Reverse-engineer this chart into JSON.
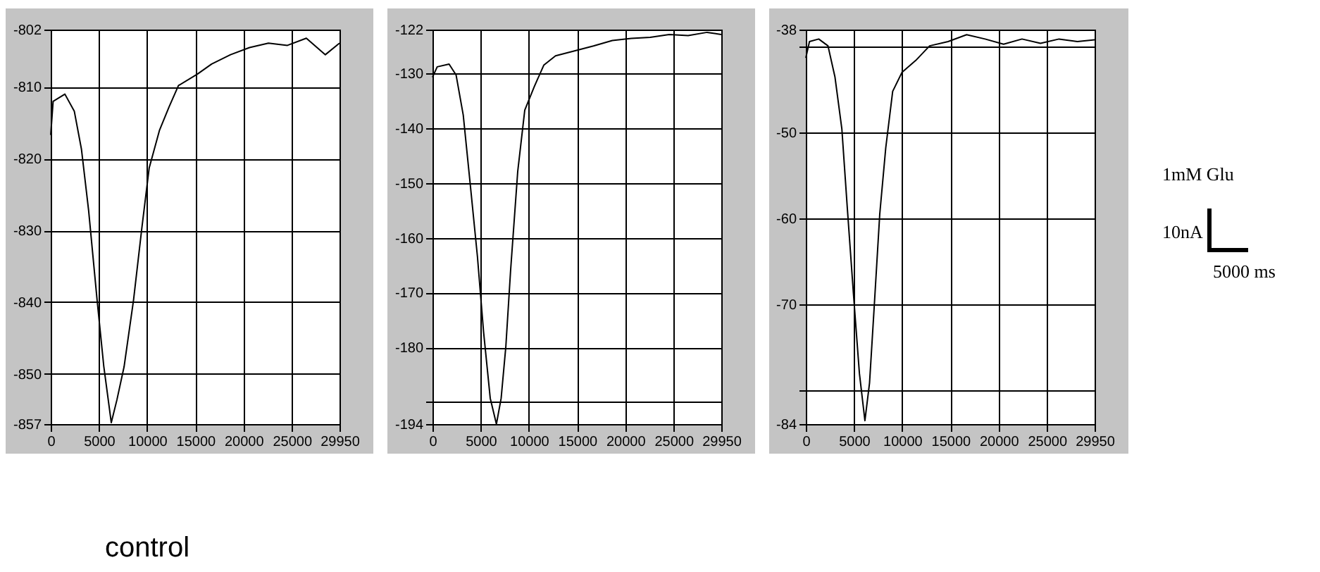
{
  "chart_data": [
    {
      "type": "line",
      "annotations": [
        "control"
      ],
      "grid": true,
      "xlim": [
        0,
        29950
      ],
      "ylim": [
        -857,
        -802
      ],
      "xticks": [
        0,
        5000,
        10000,
        15000,
        20000,
        25000,
        29950
      ],
      "yticks": [
        -857,
        -850,
        -840,
        -830,
        -820,
        -810,
        -802
      ],
      "x": [
        0,
        250,
        1470,
        2450,
        3190,
        3930,
        4810,
        5500,
        6280,
        6870,
        7610,
        8590,
        9430,
        10210,
        11290,
        12270,
        13250,
        15220,
        16690,
        18650,
        20620,
        22580,
        24550,
        26510,
        28480,
        29950
      ],
      "series": [
        {
          "color": "#000000",
          "values": [
            -816.7,
            -812,
            -811,
            -813.4,
            -818.7,
            -827.2,
            -839.7,
            -848.9,
            -856.8,
            -853.6,
            -849,
            -839.7,
            -829.9,
            -821.3,
            -816,
            -812.8,
            -809.8,
            -808.2,
            -806.8,
            -805.5,
            -804.5,
            -803.9,
            -804.2,
            -803.2,
            -805.5,
            -803.9
          ]
        }
      ]
    },
    {
      "type": "line",
      "grid": true,
      "xlim": [
        0,
        29950
      ],
      "ylim": [
        -194,
        -122
      ],
      "xticks": [
        0,
        5000,
        10000,
        15000,
        20000,
        25000,
        29950
      ],
      "yticks": [
        -194,
        {
          "value": -190,
          "label": null
        },
        -180,
        -170,
        -160,
        -150,
        -140,
        -130,
        -122
      ],
      "x": [
        0,
        490,
        1720,
        2450,
        3190,
        3930,
        4660,
        5300,
        5990,
        6630,
        7120,
        7610,
        8100,
        8840,
        9570,
        10560,
        11540,
        12760,
        14730,
        16690,
        18650,
        20620,
        22580,
        24550,
        26510,
        28480,
        29950
      ],
      "series": [
        {
          "color": "#000000",
          "values": [
            -130.7,
            -128.8,
            -128.3,
            -130.3,
            -137.6,
            -150.5,
            -163.4,
            -177.2,
            -189.3,
            -194,
            -189.3,
            -179.8,
            -166,
            -147.9,
            -136.7,
            -132.4,
            -128.5,
            -126.8,
            -125.9,
            -125,
            -124,
            -123.6,
            -123.4,
            -122.9,
            -123.1,
            -122.5,
            -122.9
          ]
        }
      ]
    },
    {
      "type": "line",
      "annotations": [
        "1mM Glu",
        "10nA",
        "5000 ms"
      ],
      "grid": true,
      "xlim": [
        0,
        29950
      ],
      "ylim": [
        -84,
        -38
      ],
      "xticks": [
        0,
        5000,
        10000,
        15000,
        20000,
        25000,
        29950
      ],
      "yticks": [
        -84,
        {
          "value": -80,
          "label": null
        },
        -70,
        -60,
        -50,
        {
          "value": -40,
          "label": null
        },
        -38
      ],
      "x": [
        0,
        380,
        1340,
        2300,
        3020,
        3740,
        4310,
        4940,
        5560,
        6130,
        6610,
        7090,
        7670,
        8290,
        9010,
        9970,
        11400,
        12840,
        14760,
        16680,
        18590,
        20510,
        22420,
        24340,
        26260,
        28170,
        29950
      ],
      "series": [
        {
          "color": "#000000",
          "values": [
            -41.3,
            -39.4,
            -39.1,
            -39.9,
            -43.5,
            -49.6,
            -58.9,
            -68.8,
            -78.1,
            -83.6,
            -79.2,
            -70.4,
            -59.5,
            -51.8,
            -45.2,
            -43,
            -41.6,
            -39.9,
            -39.4,
            -38.6,
            -39.1,
            -39.7,
            -39.1,
            -39.6,
            -39.1,
            -39.4,
            -39.2
          ]
        }
      ]
    }
  ]
}
